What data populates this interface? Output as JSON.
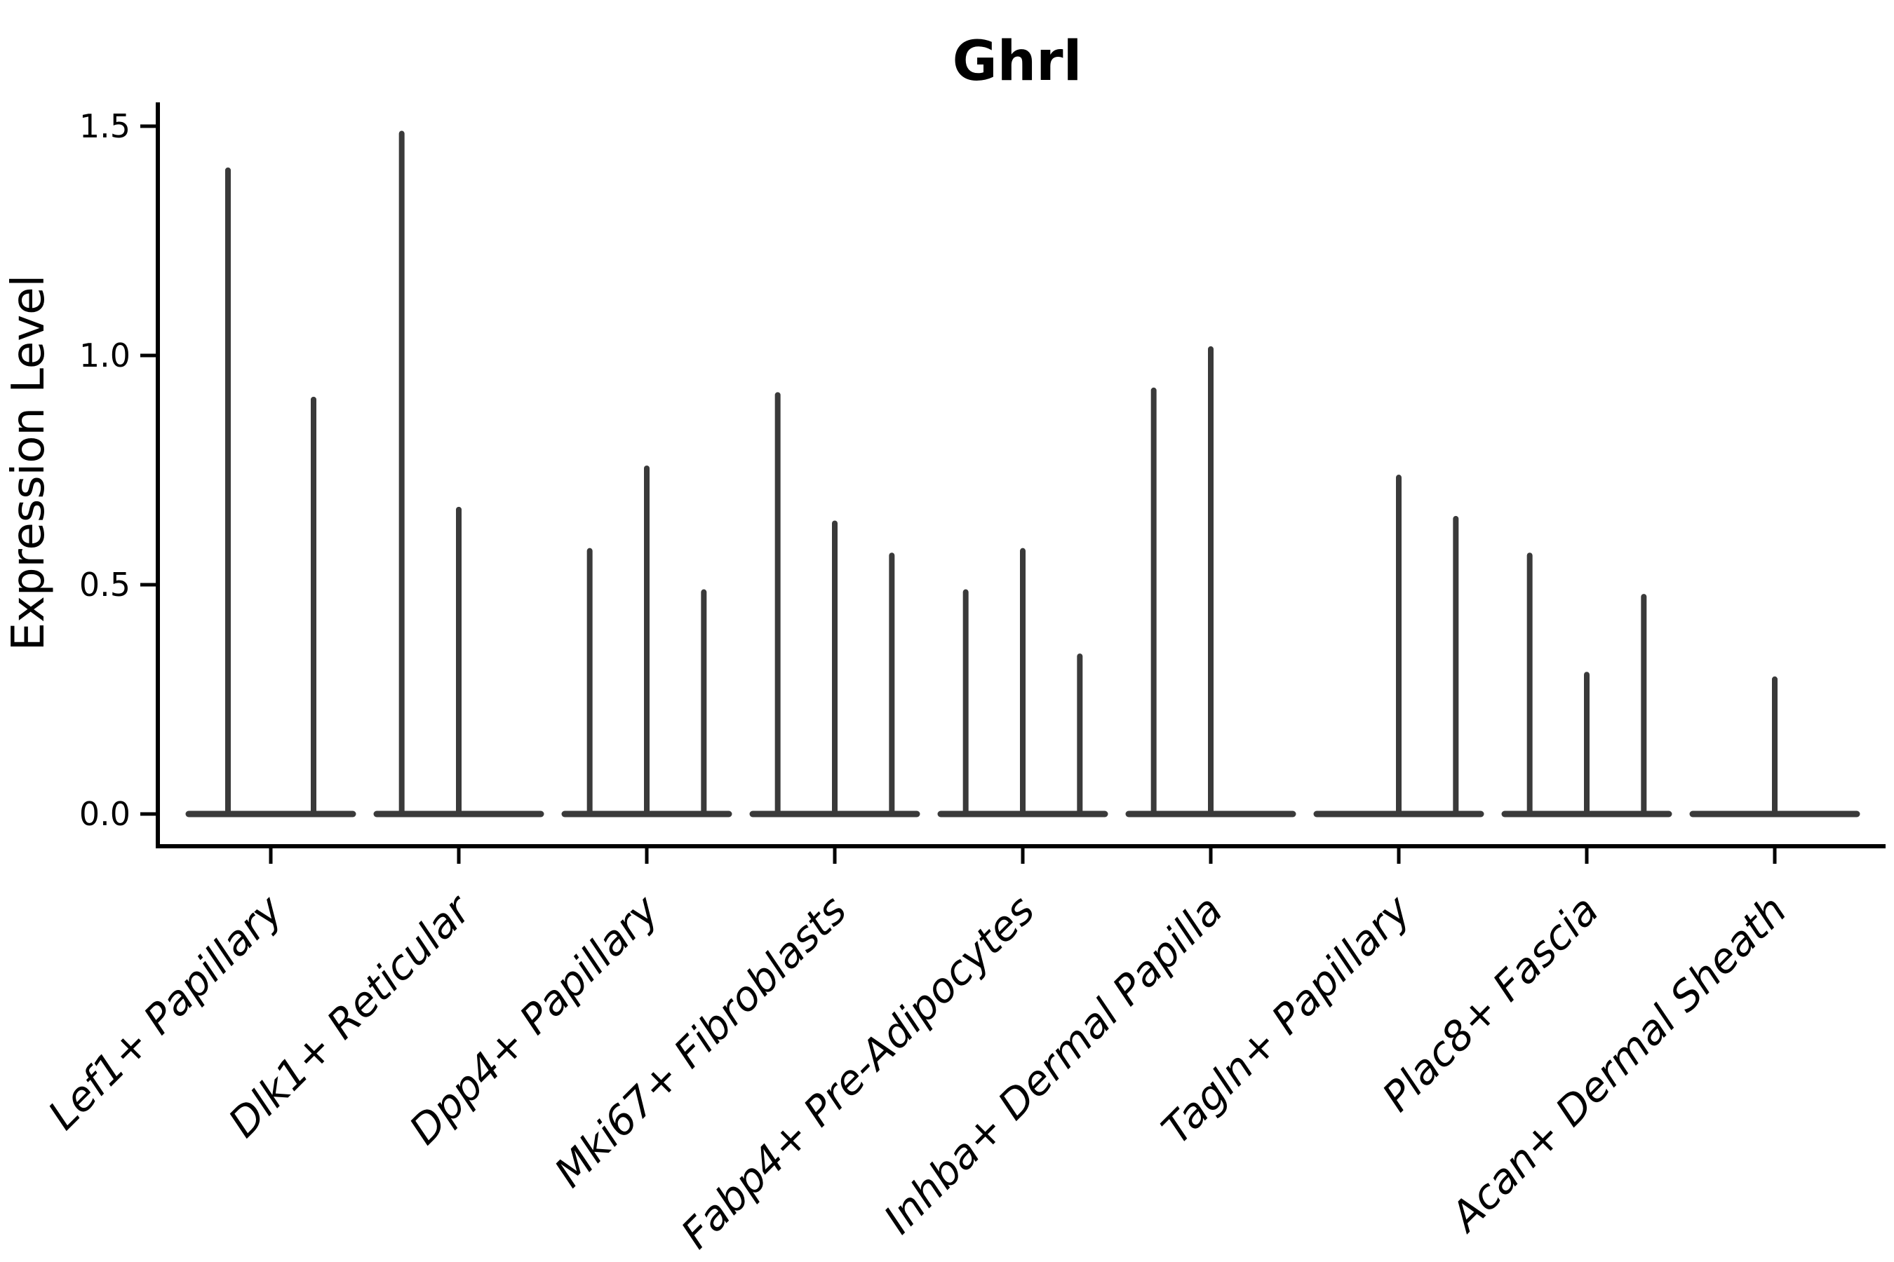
{
  "title": "Ghrl",
  "ylabel": "Expression Level",
  "colors": {
    "violin": "#3a3a3a",
    "axis": "#000000",
    "background": "#ffffff"
  },
  "chart_data": {
    "type": "violin",
    "title": "Ghrl",
    "xlabel": "",
    "ylabel": "Expression Level",
    "ylim": [
      0,
      1.55
    ],
    "yticks": [
      0.0,
      0.5,
      1.0,
      1.5
    ],
    "ytick_labels": [
      "0.0",
      "0.5",
      "1.0",
      "1.5"
    ],
    "grid": "off",
    "legend": "none",
    "categories": [
      "Lef1+ Papillary",
      "Dlk1+ Reticular",
      "Dpp4+ Papillary",
      "Mki67+ Fibroblasts",
      "Fabp4+ Pre-Adipocytes",
      "Inhba+ Dermal Papilla",
      "Tagln+ Papillary",
      "Plac8+ Fascia",
      "Acan+ Dermal Sheath"
    ],
    "note": "Each category shows thin zero-width violins: a flat baseline at expression 0 with narrow spikes; slot = violin position index within the group",
    "groups": [
      {
        "category": "Lef1+ Papillary",
        "n_slots": 2,
        "spikes": [
          {
            "slot": 0,
            "value": 1.41
          },
          {
            "slot": 1,
            "value": 0.91
          }
        ]
      },
      {
        "category": "Dlk1+ Reticular",
        "n_slots": 3,
        "spikes": [
          {
            "slot": 0,
            "value": 1.49
          },
          {
            "slot": 1,
            "value": 0.67
          }
        ]
      },
      {
        "category": "Dpp4+ Papillary",
        "n_slots": 3,
        "spikes": [
          {
            "slot": 0,
            "value": 0.58
          },
          {
            "slot": 1,
            "value": 0.76
          },
          {
            "slot": 2,
            "value": 0.49
          }
        ]
      },
      {
        "category": "Mki67+ Fibroblasts",
        "n_slots": 3,
        "spikes": [
          {
            "slot": 0,
            "value": 0.92
          },
          {
            "slot": 1,
            "value": 0.64
          },
          {
            "slot": 2,
            "value": 0.57
          }
        ]
      },
      {
        "category": "Fabp4+ Pre-Adipocytes",
        "n_slots": 3,
        "spikes": [
          {
            "slot": 0,
            "value": 0.49
          },
          {
            "slot": 1,
            "value": 0.58
          },
          {
            "slot": 2,
            "value": 0.35
          }
        ]
      },
      {
        "category": "Inhba+ Dermal Papilla",
        "n_slots": 3,
        "spikes": [
          {
            "slot": 0,
            "value": 0.93
          },
          {
            "slot": 1,
            "value": 1.02
          }
        ]
      },
      {
        "category": "Tagln+ Papillary",
        "n_slots": 3,
        "spikes": [
          {
            "slot": 1,
            "value": 0.74
          },
          {
            "slot": 2,
            "value": 0.65
          }
        ]
      },
      {
        "category": "Plac8+ Fascia",
        "n_slots": 3,
        "spikes": [
          {
            "slot": 0,
            "value": 0.57
          },
          {
            "slot": 1,
            "value": 0.31
          },
          {
            "slot": 2,
            "value": 0.48
          }
        ]
      },
      {
        "category": "Acan+ Dermal Sheath",
        "n_slots": 3,
        "spikes": [
          {
            "slot": 1,
            "value": 0.3
          }
        ]
      }
    ]
  }
}
